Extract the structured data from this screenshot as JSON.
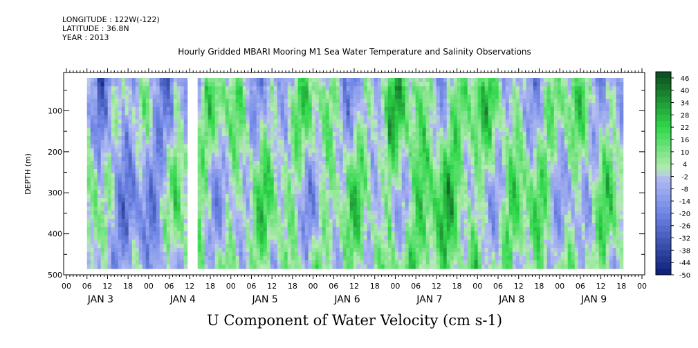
{
  "header": {
    "longitude": "LONGITUDE : 122W(-122)",
    "latitude": "LATITUDE : 36.8N",
    "year": "YEAR : 2013"
  },
  "chart_data": {
    "type": "heatmap",
    "title": "Hourly Gridded MBARI Mooring M1 Sea Water Temperature and Salinity Observations",
    "xlabel": "U Component of Water Velocity (cm s-1)",
    "ylabel": "DEPTH (m)",
    "ylim": [
      500,
      10
    ],
    "y_ticks": [
      100,
      200,
      300,
      400,
      500
    ],
    "x_hour_ticks": [
      "00",
      "06",
      "12",
      "18",
      "00",
      "06",
      "12",
      "18",
      "00",
      "06",
      "12",
      "18",
      "00",
      "06",
      "12",
      "18",
      "00",
      "06",
      "12",
      "18",
      "00",
      "06",
      "12",
      "18",
      "00",
      "06",
      "12",
      "18",
      "00"
    ],
    "x_day_labels": [
      "JAN  3",
      "JAN  4",
      "JAN  5",
      "JAN  6",
      "JAN  7",
      "JAN  8",
      "JAN  9"
    ],
    "data_range_hours": [
      6,
      162
    ],
    "data_gap_hours": [
      36,
      38
    ],
    "colorbar": {
      "labels": [
        "46",
        "40",
        "34",
        "28",
        "22",
        "16",
        "10",
        "4",
        "-2",
        "-8",
        "-14",
        "-20",
        "-26",
        "-32",
        "-38",
        "-44",
        "-50"
      ],
      "min": -50,
      "max": 49,
      "step": 3
    },
    "colors": {
      "strong_negative": "#0a1e78",
      "negative": "#6f86e6",
      "weak_negative": "#b4bdf2",
      "weak_positive": "#b6ecb3",
      "positive": "#2fd84a",
      "strong_positive": "#0b4a1e"
    },
    "grid": false
  }
}
